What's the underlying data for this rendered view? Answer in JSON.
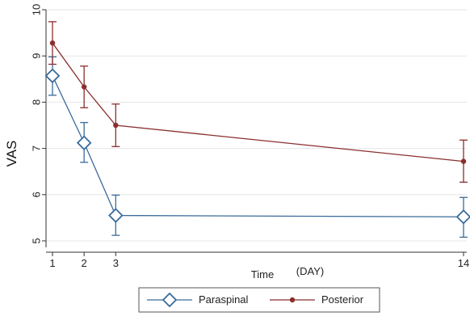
{
  "chart_data": {
    "type": "line",
    "ylabel": "VAS",
    "xlabel": "Time",
    "xlabel_unit": "(DAY)",
    "x": [
      1,
      2,
      3,
      14
    ],
    "x_ticks": [
      "1",
      "2",
      "3",
      "14"
    ],
    "y_ticks": [
      "5",
      "6",
      "7",
      "8",
      "9",
      "10"
    ],
    "xlim": [
      1,
      14
    ],
    "ylim": [
      5,
      10
    ],
    "grid": "horizontal",
    "legend_position": "bottom",
    "series": [
      {
        "name": "Paraspinal",
        "color": "#3a6b9a",
        "marker": "diamond-open",
        "values": [
          8.57,
          7.12,
          5.55,
          5.52
        ],
        "ci_low": [
          8.15,
          6.7,
          5.12,
          5.08
        ],
        "ci_high": [
          8.98,
          7.56,
          5.99,
          5.94
        ]
      },
      {
        "name": "Posterior",
        "color": "#8b2e2e",
        "marker": "dot",
        "values": [
          9.28,
          8.33,
          7.5,
          6.72
        ],
        "ci_low": [
          8.82,
          7.88,
          7.04,
          6.27
        ],
        "ci_high": [
          9.74,
          8.78,
          7.96,
          7.18
        ]
      }
    ]
  }
}
